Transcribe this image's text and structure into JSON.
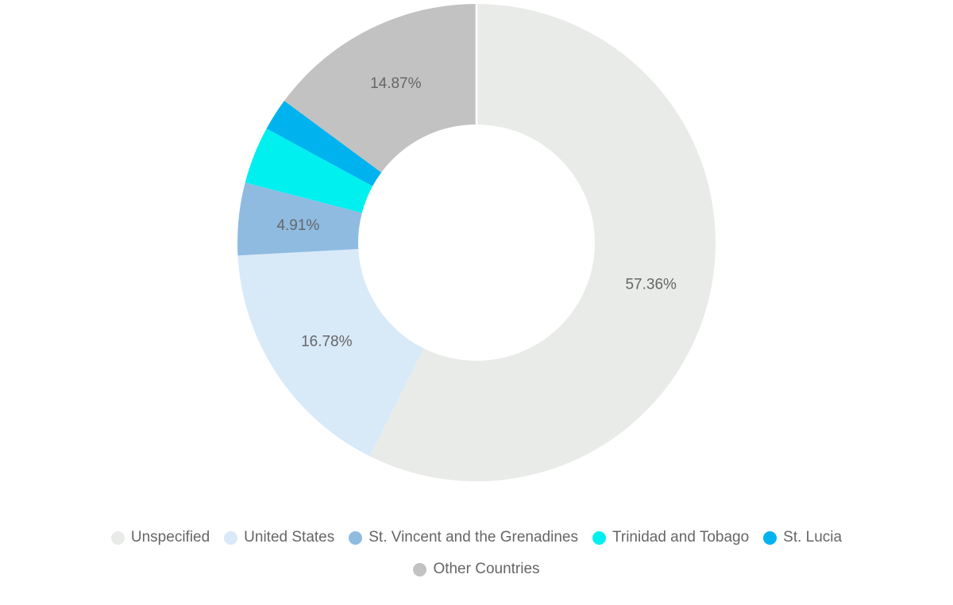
{
  "page": {
    "background_color": "#ffffff",
    "text_color": "#666666"
  },
  "chart_data": {
    "type": "pie",
    "subtype": "donut",
    "title": "",
    "unit": "%",
    "start_angle_deg": 0,
    "direction": "clockwise",
    "inner_radius_ratio": 0.495,
    "label_radius_ratio": 0.75,
    "label_color": "#666666",
    "divider_color": "#ffffff",
    "slices": [
      {
        "name": "Unspecified",
        "slug": "unspecified",
        "value": 57.36,
        "color": "#e9ebe8",
        "label": "57.36%",
        "label_shown": true
      },
      {
        "name": "United States",
        "slug": "united-states",
        "value": 16.78,
        "color": "#d8e9f8",
        "label": "16.78%",
        "label_shown": true
      },
      {
        "name": "St. Vincent and the Grenadines",
        "slug": "st-vincent-and-the-grenadines",
        "value": 4.91,
        "color": "#8fbbe1",
        "label": "4.91%",
        "label_shown": true
      },
      {
        "name": "Trinidad and Tobago",
        "slug": "trinidad-and-tobago",
        "value": 3.88,
        "color": "#00f0f0",
        "label": "",
        "label_shown": false
      },
      {
        "name": "St. Lucia",
        "slug": "st-lucia",
        "value": 2.2,
        "color": "#00b3ef",
        "label": "",
        "label_shown": false
      },
      {
        "name": "Other Countries",
        "slug": "other-countries",
        "value": 14.87,
        "color": "#c2c2c2",
        "label": "14.87%",
        "label_shown": true
      }
    ],
    "legend": {
      "position": "bottom",
      "rows": [
        [
          "Unspecified",
          "United States",
          "St. Vincent and the Grenadines",
          "Trinidad and Tobago",
          "St. Lucia"
        ],
        [
          "Other Countries"
        ]
      ]
    }
  }
}
